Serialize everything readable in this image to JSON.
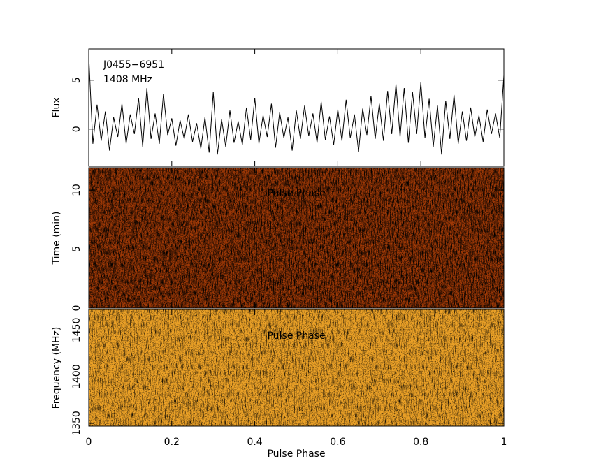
{
  "chart_data": [
    {
      "type": "line",
      "ylabel": "Flux",
      "annotations": [
        "J0455−6951",
        "1408 MHz"
      ],
      "ylim": [
        -3.8,
        8.2
      ],
      "yticks": [
        0,
        5
      ],
      "xlim": [
        0,
        1
      ],
      "color": "#000000",
      "x": [
        0,
        0.01,
        0.02,
        0.03,
        0.04,
        0.05,
        0.06,
        0.07,
        0.08,
        0.09,
        0.1,
        0.11,
        0.12,
        0.13,
        0.14,
        0.15,
        0.16,
        0.17,
        0.18,
        0.19,
        0.2,
        0.21,
        0.22,
        0.23,
        0.24,
        0.25,
        0.26,
        0.27,
        0.28,
        0.29,
        0.3,
        0.31,
        0.32,
        0.33,
        0.34,
        0.35,
        0.36,
        0.37,
        0.38,
        0.39,
        0.4,
        0.41,
        0.42,
        0.43,
        0.44,
        0.45,
        0.46,
        0.47,
        0.48,
        0.49,
        0.5,
        0.51,
        0.52,
        0.53,
        0.54,
        0.55,
        0.56,
        0.57,
        0.58,
        0.59,
        0.6,
        0.61,
        0.62,
        0.63,
        0.64,
        0.65,
        0.66,
        0.67,
        0.68,
        0.69,
        0.7,
        0.71,
        0.72,
        0.73,
        0.74,
        0.75,
        0.76,
        0.77,
        0.78,
        0.79,
        0.8,
        0.81,
        0.82,
        0.83,
        0.84,
        0.85,
        0.86,
        0.87,
        0.88,
        0.89,
        0.9,
        0.91,
        0.92,
        0.93,
        0.94,
        0.95,
        0.96,
        0.97,
        0.98,
        0.99,
        1
      ],
      "values": [
        7.5,
        -1.5,
        2.5,
        -1.2,
        1.8,
        -2.2,
        1.2,
        -0.8,
        2.6,
        -1.5,
        1.5,
        -0.5,
        3.2,
        -1.8,
        4.2,
        -1.0,
        1.6,
        -1.5,
        3.6,
        -0.6,
        1.1,
        -1.7,
        0.9,
        -1.0,
        1.5,
        -1.3,
        0.6,
        -2.0,
        1.2,
        -2.4,
        3.8,
        -2.6,
        1.0,
        -1.8,
        1.9,
        -1.4,
        0.8,
        -1.6,
        2.2,
        -1.1,
        3.2,
        -1.5,
        1.4,
        -0.8,
        2.6,
        -1.9,
        1.7,
        -0.9,
        1.2,
        -2.2,
        1.9,
        -1.0,
        2.4,
        -0.7,
        1.6,
        -1.4,
        2.8,
        -1.1,
        1.3,
        -1.6,
        2.0,
        -1.2,
        3.0,
        -0.9,
        1.5,
        -2.3,
        2.1,
        -0.6,
        3.4,
        -1.0,
        2.6,
        -1.2,
        3.9,
        -0.5,
        4.6,
        -0.8,
        4.2,
        -1.4,
        3.8,
        -0.5,
        4.8,
        -0.9,
        3.1,
        -1.8,
        2.4,
        -2.6,
        2.9,
        -1.0,
        3.5,
        -1.5,
        1.8,
        -1.2,
        2.2,
        -0.8,
        1.4,
        -1.3,
        2.0,
        -0.5,
        1.6,
        -0.9,
        5.5
      ]
    },
    {
      "type": "heatmap",
      "title": "Pulse Phase",
      "ylabel": "Time (min)",
      "ylim": [
        0,
        11.9
      ],
      "yticks": [
        0,
        5,
        10
      ],
      "xlim": [
        0,
        1
      ],
      "colors": [
        "#a33a06",
        "#e07a18",
        "#5a1400"
      ]
    },
    {
      "type": "heatmap",
      "title": "Pulse Phase",
      "ylabel": "Frequency (MHz)",
      "xlabel": "Pulse Phase",
      "ylim": [
        1347,
        1472
      ],
      "yticks": [
        1350,
        1400,
        1450
      ],
      "xlim": [
        0,
        1
      ],
      "xticks": [
        0,
        0.2,
        0.4,
        0.6,
        0.8,
        1
      ],
      "colors": [
        "#eba127",
        "#ffe060",
        "#a53000"
      ]
    }
  ]
}
